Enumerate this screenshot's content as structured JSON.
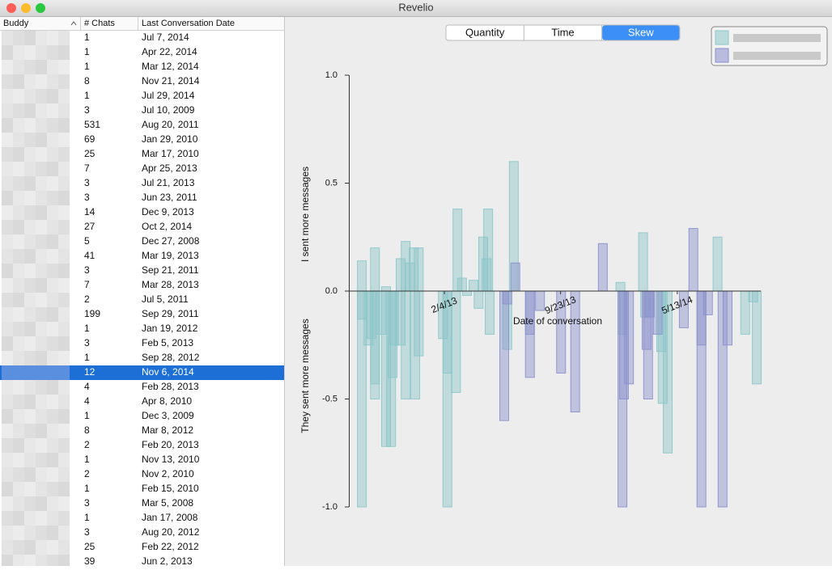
{
  "window": {
    "title": "Revelio"
  },
  "table": {
    "columns": [
      "Buddy",
      "# Chats",
      "Last Conversation Date"
    ],
    "selected_row": 23,
    "rows": [
      [
        1,
        "Jul 7, 2014"
      ],
      [
        1,
        "Apr 22, 2014"
      ],
      [
        1,
        "Mar 12, 2014"
      ],
      [
        8,
        "Nov 21, 2014"
      ],
      [
        1,
        "Jul 29, 2014"
      ],
      [
        3,
        "Jul 10, 2009"
      ],
      [
        531,
        "Aug 20, 2011"
      ],
      [
        69,
        "Jan 29, 2010"
      ],
      [
        25,
        "Mar 17, 2010"
      ],
      [
        7,
        "Apr 25, 2013"
      ],
      [
        3,
        "Jul 21, 2013"
      ],
      [
        3,
        "Jun 23, 2011"
      ],
      [
        14,
        "Dec 9, 2013"
      ],
      [
        27,
        "Oct 2, 2014"
      ],
      [
        5,
        "Dec 27, 2008"
      ],
      [
        41,
        "Mar 19, 2013"
      ],
      [
        3,
        "Sep 21, 2011"
      ],
      [
        7,
        "Mar 28, 2013"
      ],
      [
        2,
        "Jul 5, 2011"
      ],
      [
        199,
        "Sep 29, 2011"
      ],
      [
        1,
        "Jan 19, 2012"
      ],
      [
        3,
        "Feb 5, 2013"
      ],
      [
        1,
        "Sep 28, 2012"
      ],
      [
        12,
        "Nov 6, 2014"
      ],
      [
        4,
        "Feb 28, 2013"
      ],
      [
        4,
        "Apr 8, 2010"
      ],
      [
        1,
        "Dec 3, 2009"
      ],
      [
        8,
        "Mar 8, 2012"
      ],
      [
        2,
        "Feb 20, 2013"
      ],
      [
        1,
        "Nov 13, 2010"
      ],
      [
        2,
        "Nov 2, 2010"
      ],
      [
        1,
        "Feb 15, 2010"
      ],
      [
        3,
        "Mar 5, 2008"
      ],
      [
        1,
        "Jan 17, 2008"
      ],
      [
        3,
        "Aug 20, 2012"
      ],
      [
        25,
        "Feb 22, 2012"
      ],
      [
        39,
        "Jun 2, 2013"
      ]
    ]
  },
  "segments": {
    "labels": [
      "Quantity",
      "Time",
      "Skew"
    ],
    "selected": 2
  },
  "chart_data": {
    "type": "bar",
    "ylabel_positive": "I sent more messages",
    "ylabel_negative": "They sent more messages",
    "xlabel": "Date of conversation",
    "ylim": [
      -1,
      1
    ],
    "yticks": [
      {
        "value": 1,
        "label": "1.0"
      },
      0.5,
      {
        "value": 0,
        "label": "0.0"
      },
      -0.5,
      {
        "value": -1,
        "label": "-1.0"
      }
    ],
    "xlim": [
      "2012-07-29",
      "2014-10-26"
    ],
    "xticks": [
      {
        "value": "2013-02-04",
        "label": "2/4/13"
      },
      {
        "value": "2013-09-23",
        "label": "9/23/13"
      },
      {
        "value": "2014-05-13",
        "label": "5/13/14"
      }
    ],
    "series": [
      {
        "color": "#8cc6c9",
        "x": [
          "2012-08-24",
          "2012-08-24",
          "2012-08-24",
          "2012-09-06",
          "2012-09-12",
          "2012-09-19",
          "2012-09-19",
          "2012-09-19",
          "2012-10-02",
          "2012-10-11",
          "2012-10-11",
          "2012-10-21",
          "2012-10-24",
          "2012-10-27",
          "2012-11-09",
          "2012-11-09",
          "2012-11-19",
          "2012-11-19",
          "2012-11-28",
          "2012-12-05",
          "2012-12-08",
          "2012-12-15",
          "2012-12-15",
          "2013-02-01",
          "2013-02-10",
          "2013-02-10",
          "2013-03-02",
          "2013-02-27",
          "2013-03-11",
          "2013-03-21",
          "2013-04-03",
          "2013-04-13",
          "2013-04-22",
          "2013-04-29",
          "2013-05-02",
          "2013-05-05",
          "2013-06-22",
          "2013-06-09",
          "2014-01-20",
          "2014-01-24",
          "2014-03-06",
          "2014-03-10",
          "2014-04-11",
          "2014-04-14",
          "2014-04-24",
          "2014-08-01",
          "2014-09-25",
          "2014-10-11",
          "2014-10-18"
        ],
        "values": [
          0.14,
          -1.0,
          -0.13,
          -0.25,
          -0.22,
          0.2,
          -0.5,
          -0.43,
          -0.2,
          0.02,
          -0.72,
          -0.72,
          -0.4,
          -0.25,
          0.15,
          -0.25,
          0.23,
          -0.5,
          0.13,
          0.2,
          -0.5,
          0.2,
          -0.3,
          -0.22,
          -1.0,
          -0.38,
          0.38,
          -0.47,
          0.06,
          -0.02,
          0.05,
          -0.08,
          0.25,
          0.15,
          0.38,
          -0.2,
          0.6,
          -0.27,
          0.04,
          -0.2,
          0.27,
          -0.12,
          -0.28,
          -0.52,
          -0.75,
          0.25,
          -0.2,
          -0.05,
          -0.43
        ]
      },
      {
        "color": "#8a90cc",
        "x": [
          "2013-06-09",
          "2013-06-25",
          "2013-06-03",
          "2013-07-24",
          "2013-07-24",
          "2013-08-13",
          "2013-09-24",
          "2013-10-22",
          "2013-12-16",
          "2014-01-24",
          "2014-01-27",
          "2014-02-06",
          "2014-03-13",
          "2014-03-16",
          "2014-03-19",
          "2014-04-04",
          "2014-05-26",
          "2014-06-14",
          "2014-06-30",
          "2014-06-30",
          "2014-07-13",
          "2014-08-11",
          "2014-08-21"
        ],
        "values": [
          -0.06,
          0.13,
          -0.6,
          -0.2,
          -0.4,
          -0.09,
          -0.38,
          -0.56,
          0.22,
          -1.0,
          -0.5,
          -0.43,
          -0.27,
          -0.5,
          -0.12,
          -0.2,
          -0.17,
          0.29,
          -0.25,
          -1.0,
          -0.11,
          -1.0,
          -0.25
        ]
      }
    ]
  }
}
